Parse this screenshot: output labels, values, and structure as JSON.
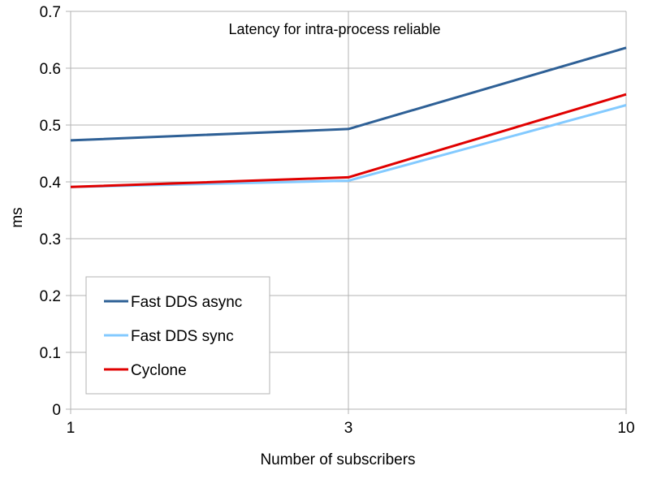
{
  "chart_data": {
    "type": "line",
    "title": "Latency for intra-process reliable",
    "xlabel": "Number of subscribers",
    "ylabel": "ms",
    "categories": [
      "1",
      "3",
      "10"
    ],
    "ylim": [
      0,
      0.7
    ],
    "yticks": [
      "0",
      "0.1",
      "0.2",
      "0.3",
      "0.4",
      "0.5",
      "0.6",
      "0.7"
    ],
    "grid": true,
    "legend_position": "bottom-left",
    "series": [
      {
        "name": "Fast DDS async",
        "color": "#2e6096",
        "values": [
          0.473,
          0.493,
          0.636
        ]
      },
      {
        "name": "Fast DDS sync",
        "color": "#83caff",
        "values": [
          0.391,
          0.402,
          0.535
        ]
      },
      {
        "name": "Cyclone",
        "color": "#e00000",
        "values": [
          0.391,
          0.408,
          0.554
        ]
      }
    ]
  }
}
